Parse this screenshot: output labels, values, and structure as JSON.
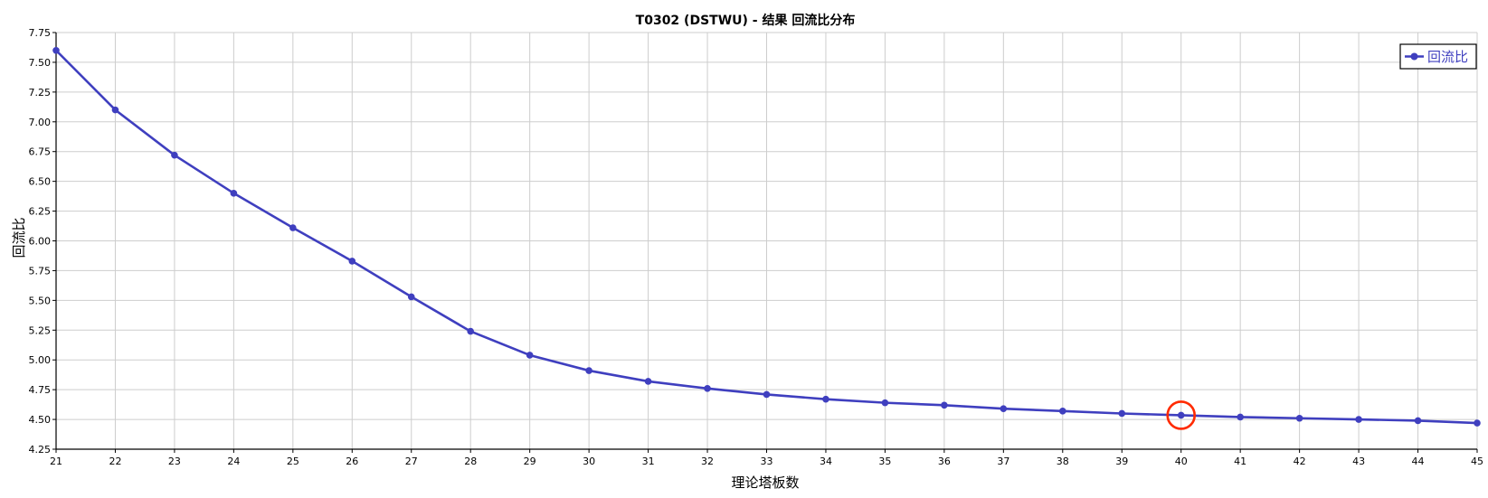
{
  "chart_data": {
    "type": "line",
    "title": "T0302 (DSTWU) - 结果 回流比分布",
    "xlabel": "理论塔板数",
    "ylabel": "回流比",
    "xlim": [
      21,
      45
    ],
    "ylim": [
      4.25,
      7.75
    ],
    "x_ticks": [
      "21",
      "22",
      "23",
      "24",
      "25",
      "26",
      "27",
      "28",
      "29",
      "30",
      "31",
      "32",
      "33",
      "34",
      "35",
      "36",
      "37",
      "38",
      "39",
      "40",
      "41",
      "42",
      "43",
      "44",
      "45"
    ],
    "y_ticks": [
      "4.25",
      "4.50",
      "4.75",
      "5.00",
      "5.25",
      "5.50",
      "5.75",
      "6.00",
      "6.25",
      "6.50",
      "6.75",
      "7.00",
      "7.25",
      "7.50",
      "7.75"
    ],
    "grid": true,
    "legend_position": "top-right",
    "series": [
      {
        "name": "回流比",
        "color": "#3f3fbf",
        "x": [
          21,
          22,
          23,
          24,
          25,
          26,
          27,
          28,
          29,
          30,
          31,
          32,
          33,
          34,
          35,
          36,
          37,
          38,
          39,
          40,
          41,
          42,
          43,
          44,
          45
        ],
        "values": [
          7.6,
          7.1,
          6.72,
          6.4,
          6.11,
          5.83,
          5.53,
          5.24,
          5.04,
          4.91,
          4.82,
          4.76,
          4.71,
          4.67,
          4.64,
          4.62,
          4.59,
          4.57,
          4.55,
          4.535,
          4.52,
          4.51,
          4.5,
          4.49,
          4.47
        ]
      }
    ],
    "annotations": [
      {
        "type": "circle",
        "x": 40,
        "y": 4.535,
        "color": "#ff2a00"
      }
    ]
  }
}
